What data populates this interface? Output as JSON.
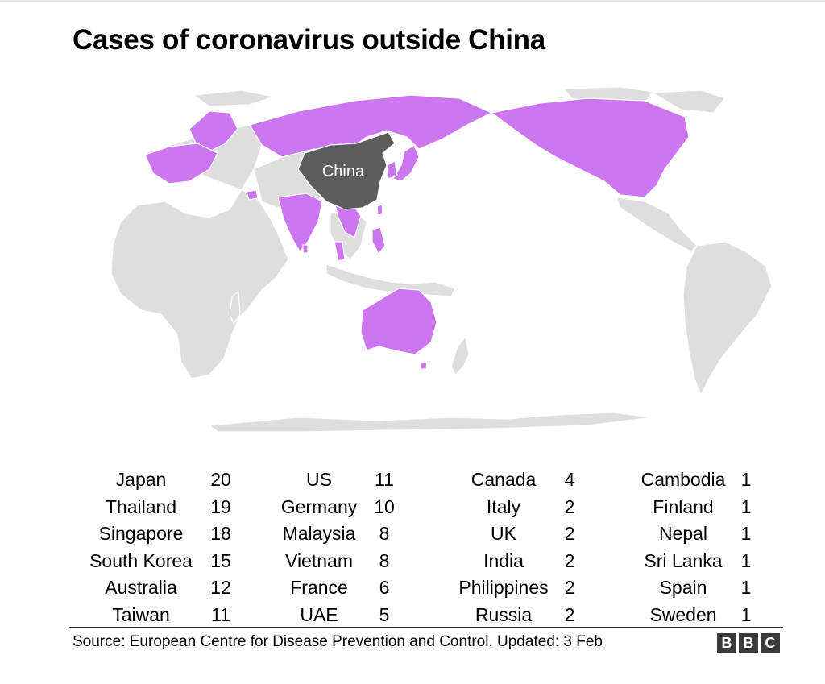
{
  "title": "Cases of coronavirus outside China",
  "map": {
    "china_label": "China",
    "colors": {
      "affected": "#cc77f0",
      "china": "#5d5d5d",
      "other": "#dedede"
    }
  },
  "cases": {
    "columns": [
      [
        {
          "country": "Japan",
          "count": "20"
        },
        {
          "country": "Thailand",
          "count": "19"
        },
        {
          "country": "Singapore",
          "count": "18"
        },
        {
          "country": "South Korea",
          "count": "15"
        },
        {
          "country": "Australia",
          "count": "12"
        },
        {
          "country": "Taiwan",
          "count": "11"
        }
      ],
      [
        {
          "country": "US",
          "count": "11"
        },
        {
          "country": "Germany",
          "count": "10"
        },
        {
          "country": "Malaysia",
          "count": "8"
        },
        {
          "country": "Vietnam",
          "count": "8"
        },
        {
          "country": "France",
          "count": "6"
        },
        {
          "country": "UAE",
          "count": "5"
        }
      ],
      [
        {
          "country": "Canada",
          "count": "4"
        },
        {
          "country": "Italy",
          "count": "2"
        },
        {
          "country": "UK",
          "count": "2"
        },
        {
          "country": "India",
          "count": "2"
        },
        {
          "country": "Philippines",
          "count": "2"
        },
        {
          "country": "Russia",
          "count": "2"
        }
      ],
      [
        {
          "country": "Cambodia",
          "count": "1"
        },
        {
          "country": "Finland",
          "count": "1"
        },
        {
          "country": "Nepal",
          "count": "1"
        },
        {
          "country": "Sri Lanka",
          "count": "1"
        },
        {
          "country": "Spain",
          "count": "1"
        },
        {
          "country": "Sweden",
          "count": "1"
        }
      ]
    ]
  },
  "source": "Source: European Centre for Disease Prevention and Control. Updated: 3 Feb",
  "logo": {
    "letters": [
      "B",
      "B",
      "C"
    ]
  }
}
